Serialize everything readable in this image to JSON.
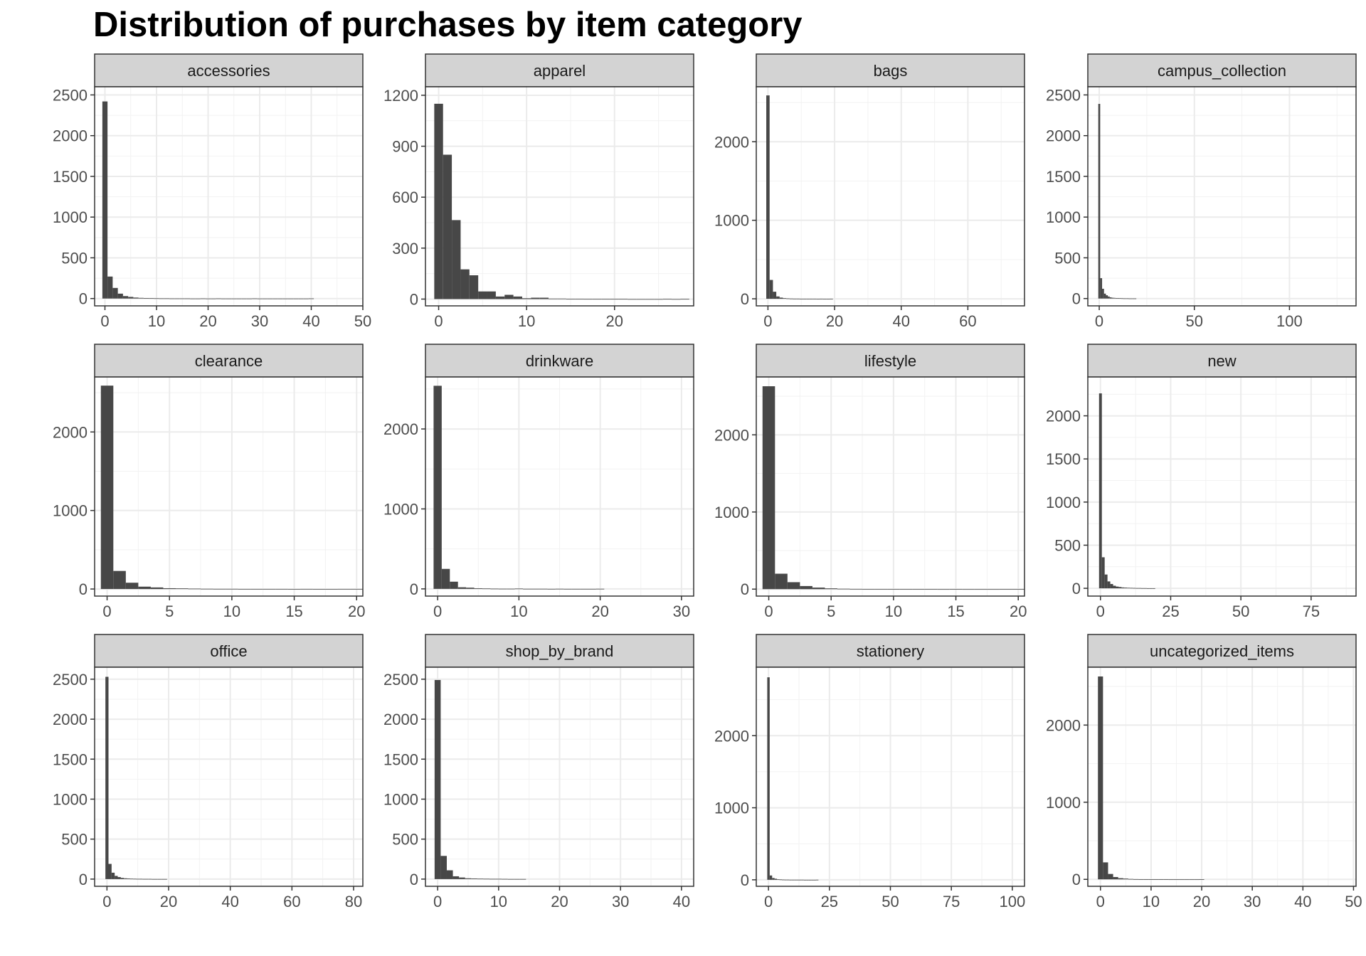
{
  "title": "Distribution of purchases by item category",
  "chart_data": {
    "type": "bar",
    "subtype": "faceted histogram",
    "title": "Distribution of purchases by item category",
    "xlabel": "",
    "ylabel": "",
    "grid": true,
    "colors": {
      "bar": "#474747",
      "strip": "#d3d3d3",
      "panel_border": "#333333",
      "grid_major": "#ebebeb"
    },
    "facets": [
      {
        "label": "accessories",
        "xlim": [
          -2,
          50
        ],
        "ylim": [
          -90,
          2600
        ],
        "xticks": [
          0,
          10,
          20,
          30,
          40,
          50
        ],
        "yticks": [
          0,
          500,
          1000,
          1500,
          2000,
          2500
        ],
        "bin_width": 1,
        "bin_start": -0.5,
        "values": [
          2420,
          270,
          130,
          60,
          30,
          20,
          12,
          8,
          6,
          4,
          3,
          2,
          2,
          1,
          1,
          1,
          1,
          0,
          0,
          1,
          0,
          0,
          1,
          0,
          0,
          0,
          0,
          0,
          0,
          1,
          0,
          0,
          0,
          0,
          0,
          0,
          0,
          0,
          0,
          0,
          1
        ]
      },
      {
        "label": "apparel",
        "xlim": [
          -1.5,
          29
        ],
        "ylim": [
          -40,
          1250
        ],
        "xticks": [
          0,
          10,
          20
        ],
        "yticks": [
          0,
          300,
          600,
          900,
          1200
        ],
        "bin_width": 1,
        "bin_start": -0.5,
        "values": [
          1150,
          850,
          465,
          175,
          140,
          45,
          45,
          15,
          25,
          15,
          5,
          8,
          8,
          3,
          3,
          2,
          2,
          1,
          1,
          1,
          1,
          1,
          0,
          0,
          0,
          0,
          1,
          0,
          1
        ]
      },
      {
        "label": "bags",
        "xlim": [
          -3.5,
          77
        ],
        "ylim": [
          -90,
          2700
        ],
        "xticks": [
          0,
          20,
          40,
          60
        ],
        "yticks": [
          0,
          1000,
          2000
        ],
        "bin_width": 1,
        "bin_start": -0.5,
        "values": [
          2590,
          240,
          90,
          30,
          15,
          8,
          5,
          3,
          2,
          2,
          1,
          1,
          1,
          1,
          1,
          0,
          1,
          0,
          0,
          1
        ]
      },
      {
        "label": "campus_collection",
        "xlim": [
          -6,
          135
        ],
        "ylim": [
          -90,
          2600
        ],
        "xticks": [
          0,
          50,
          100
        ],
        "yticks": [
          0,
          500,
          1000,
          1500,
          2000,
          2500
        ],
        "bin_width": 1,
        "bin_start": -0.5,
        "values": [
          2390,
          250,
          120,
          60,
          40,
          25,
          15,
          10,
          8,
          6,
          5,
          4,
          3,
          2,
          2,
          2,
          1,
          1,
          1,
          1
        ]
      },
      {
        "label": "clearance",
        "xlim": [
          -1,
          20.5
        ],
        "ylim": [
          -90,
          2700
        ],
        "xticks": [
          0,
          5,
          10,
          15,
          20
        ],
        "yticks": [
          0,
          1000,
          2000
        ],
        "bin_width": 1,
        "bin_start": -0.5,
        "values": [
          2590,
          230,
          80,
          30,
          20,
          10,
          8,
          5,
          3,
          2,
          2,
          1,
          1,
          1,
          1,
          0,
          1,
          0,
          0,
          1,
          1
        ]
      },
      {
        "label": "drinkware",
        "xlim": [
          -1.5,
          31.5
        ],
        "ylim": [
          -90,
          2650
        ],
        "xticks": [
          0,
          10,
          20,
          30
        ],
        "yticks": [
          0,
          1000,
          2000
        ],
        "bin_width": 1,
        "bin_start": -0.5,
        "values": [
          2540,
          250,
          90,
          20,
          15,
          8,
          5,
          3,
          2,
          2,
          4,
          1,
          1,
          1,
          0,
          1,
          0,
          0,
          0,
          0,
          1
        ]
      },
      {
        "label": "lifestyle",
        "xlim": [
          -1,
          20.5
        ],
        "ylim": [
          -90,
          2750
        ],
        "xticks": [
          0,
          5,
          10,
          15,
          20
        ],
        "yticks": [
          0,
          1000,
          2000
        ],
        "bin_width": 1,
        "bin_start": -0.5,
        "values": [
          2630,
          200,
          90,
          40,
          20,
          10,
          5,
          3,
          2,
          2,
          1,
          1,
          1,
          1,
          0,
          1,
          0,
          0,
          0,
          1,
          1
        ]
      },
      {
        "label": "new",
        "xlim": [
          -4.5,
          91
        ],
        "ylim": [
          -90,
          2450
        ],
        "xticks": [
          0,
          25,
          50,
          75
        ],
        "yticks": [
          0,
          500,
          1000,
          1500,
          2000
        ],
        "bin_width": 1,
        "bin_start": -0.5,
        "values": [
          2260,
          360,
          160,
          80,
          50,
          30,
          20,
          15,
          10,
          8,
          6,
          5,
          4,
          3,
          3,
          2,
          2,
          1,
          1,
          1
        ]
      },
      {
        "label": "office",
        "xlim": [
          -4,
          83
        ],
        "ylim": [
          -90,
          2650
        ],
        "xticks": [
          0,
          20,
          40,
          60,
          80
        ],
        "yticks": [
          0,
          500,
          1000,
          1500,
          2000,
          2500
        ],
        "bin_width": 1,
        "bin_start": -0.5,
        "values": [
          2530,
          190,
          80,
          40,
          25,
          15,
          10,
          8,
          5,
          4,
          3,
          3,
          2,
          2,
          2,
          1,
          1,
          1,
          1,
          1
        ]
      },
      {
        "label": "shop_by_brand",
        "xlim": [
          -2,
          42
        ],
        "ylim": [
          -90,
          2650
        ],
        "xticks": [
          0,
          10,
          20,
          30,
          40
        ],
        "yticks": [
          0,
          500,
          1000,
          1500,
          2000,
          2500
        ],
        "bin_width": 1,
        "bin_start": -0.5,
        "values": [
          2490,
          290,
          110,
          35,
          20,
          10,
          8,
          5,
          4,
          3,
          3,
          2,
          1,
          1,
          1
        ]
      },
      {
        "label": "stationery",
        "xlim": [
          -5,
          105
        ],
        "ylim": [
          -90,
          2950
        ],
        "xticks": [
          0,
          25,
          50,
          75,
          100
        ],
        "yticks": [
          0,
          1000,
          2000
        ],
        "bin_width": 1,
        "bin_start": -0.5,
        "values": [
          2810,
          60,
          25,
          15,
          8,
          5,
          3,
          2,
          2,
          1,
          1,
          1,
          1,
          1,
          1,
          0,
          0,
          0,
          0,
          0,
          1
        ]
      },
      {
        "label": "uncategorized_items",
        "xlim": [
          -2.5,
          50.5
        ],
        "ylim": [
          -90,
          2750
        ],
        "xticks": [
          0,
          10,
          20,
          30,
          40,
          50
        ],
        "yticks": [
          0,
          1000,
          2000
        ],
        "bin_width": 1,
        "bin_start": -0.5,
        "values": [
          2630,
          220,
          70,
          30,
          15,
          10,
          5,
          3,
          2,
          1,
          1,
          1,
          1,
          1,
          0,
          0,
          0,
          0,
          0,
          0,
          1
        ]
      }
    ]
  }
}
